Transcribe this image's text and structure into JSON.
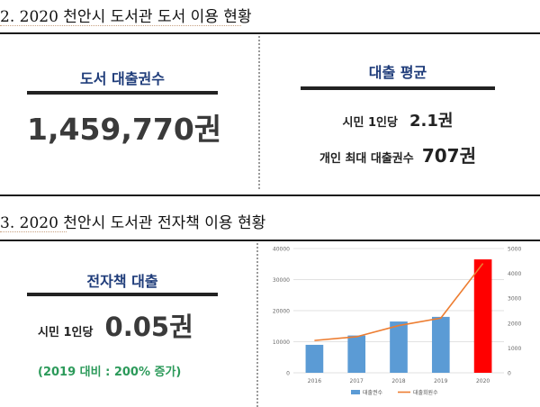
{
  "section2": {
    "title": "2. 2020 천안시 도서관 도서 이용 현황",
    "loans_label": "도서 대출권수",
    "loans_value": "1,459,770권",
    "avg_label": "대출 평균",
    "per_capita_label": "시민 1인당",
    "per_capita_value": "2.1권",
    "max_label": "개인 최대 대출권수",
    "max_value": "707권"
  },
  "section3": {
    "title": "3. 2020 천안시 도서관 전자책 이용 현황",
    "ebook_label": "전자책 대출",
    "per_capita_label": "시민 1인당",
    "per_capita_value": "0.05권",
    "growth_note": "(2019 대비 : 200% 증가)"
  },
  "colors": {
    "bar": "#5b9bd5",
    "bar_highlight": "#ff0000",
    "line": "#ed7d31",
    "title_blue": "#1f3c7a",
    "note_green": "#2c9a5a"
  },
  "chart_data": {
    "type": "bar",
    "categories": [
      "2016",
      "2017",
      "2018",
      "2019",
      "2020"
    ],
    "series": [
      {
        "name": "대출권수",
        "type": "bar",
        "axis": "left",
        "values": [
          9000,
          12000,
          16500,
          18000,
          36500
        ]
      },
      {
        "name": "대출회원수",
        "type": "line",
        "axis": "right",
        "values": [
          1300,
          1450,
          1900,
          2200,
          4400
        ]
      }
    ],
    "left_ylim": [
      0,
      40000
    ],
    "left_yticks": [
      "0",
      "10000",
      "20000",
      "30000",
      "40000"
    ],
    "right_ylim": [
      0,
      5000
    ],
    "right_yticks": [
      "0",
      "1000",
      "2000",
      "3000",
      "4000",
      "5000"
    ],
    "highlight_category": "2020",
    "legend_position": "bottom",
    "grid": true
  }
}
